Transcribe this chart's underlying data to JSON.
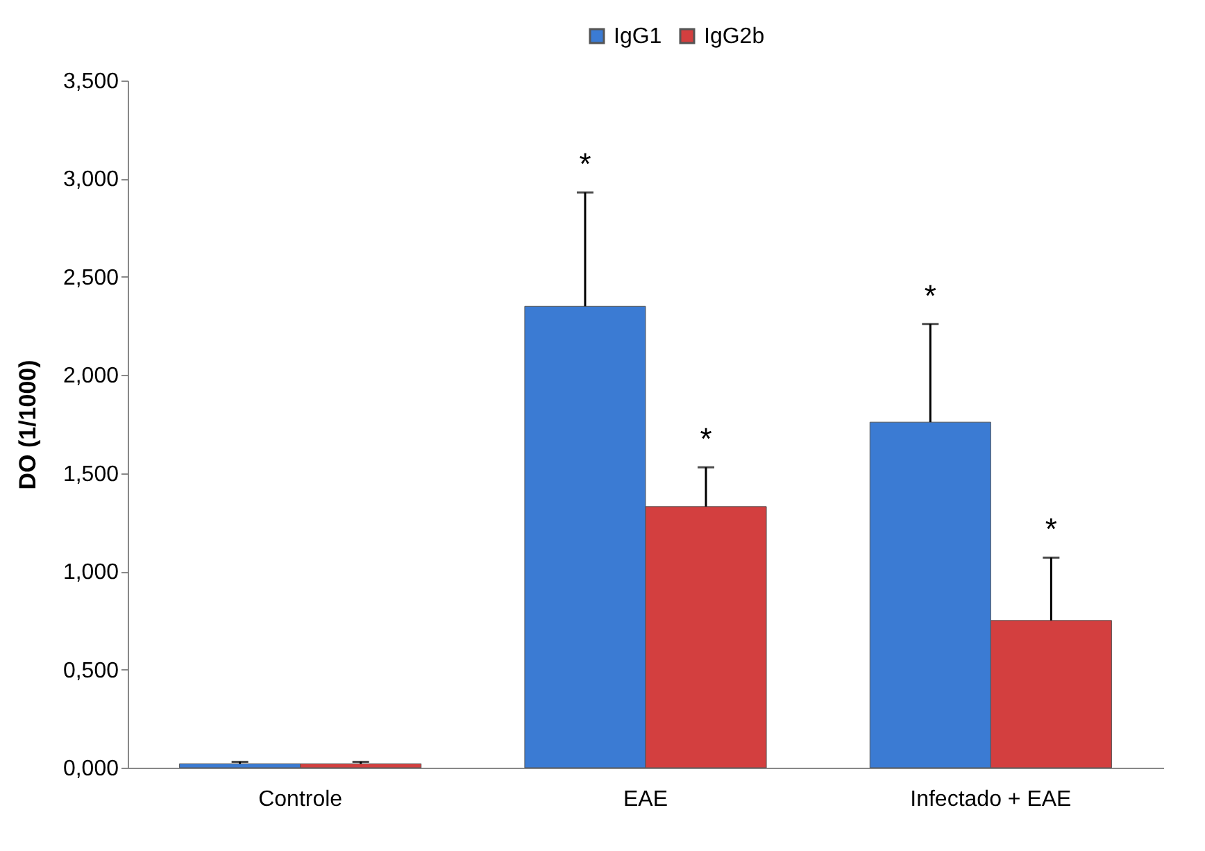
{
  "chart_data": {
    "type": "bar",
    "ylabel": "DO (1/1000)",
    "categories": [
      "Controle",
      "EAE",
      "Infectado + EAE"
    ],
    "series": [
      {
        "name": "IgG1",
        "color": "#3b7bd3",
        "values": [
          0.02,
          2.35,
          1.76
        ],
        "errors": [
          [
            0.02,
            0.03
          ],
          [
            2.35,
            2.93
          ],
          [
            1.76,
            2.26
          ]
        ]
      },
      {
        "name": "IgG2b",
        "color": "#d33f3f",
        "values": [
          0.02,
          1.33,
          0.75
        ],
        "errors": [
          [
            0.02,
            0.03
          ],
          [
            1.33,
            1.53
          ],
          [
            0.75,
            1.07
          ]
        ]
      }
    ],
    "ylim": [
      0,
      3.5
    ],
    "yticks": [
      {
        "value": 0,
        "label": "0,000"
      },
      {
        "value": 0.5,
        "label": "0,500"
      },
      {
        "value": 1,
        "label": "1,000"
      },
      {
        "value": 1.5,
        "label": "1,500"
      },
      {
        "value": 2,
        "label": "2,000"
      },
      {
        "value": 2.5,
        "label": "2,500"
      },
      {
        "value": 3,
        "label": "3,000"
      },
      {
        "value": 3.5,
        "label": "3,500"
      }
    ],
    "annotations": [
      "*",
      "*",
      "*",
      "*"
    ],
    "legend": "top",
    "grid": false
  }
}
